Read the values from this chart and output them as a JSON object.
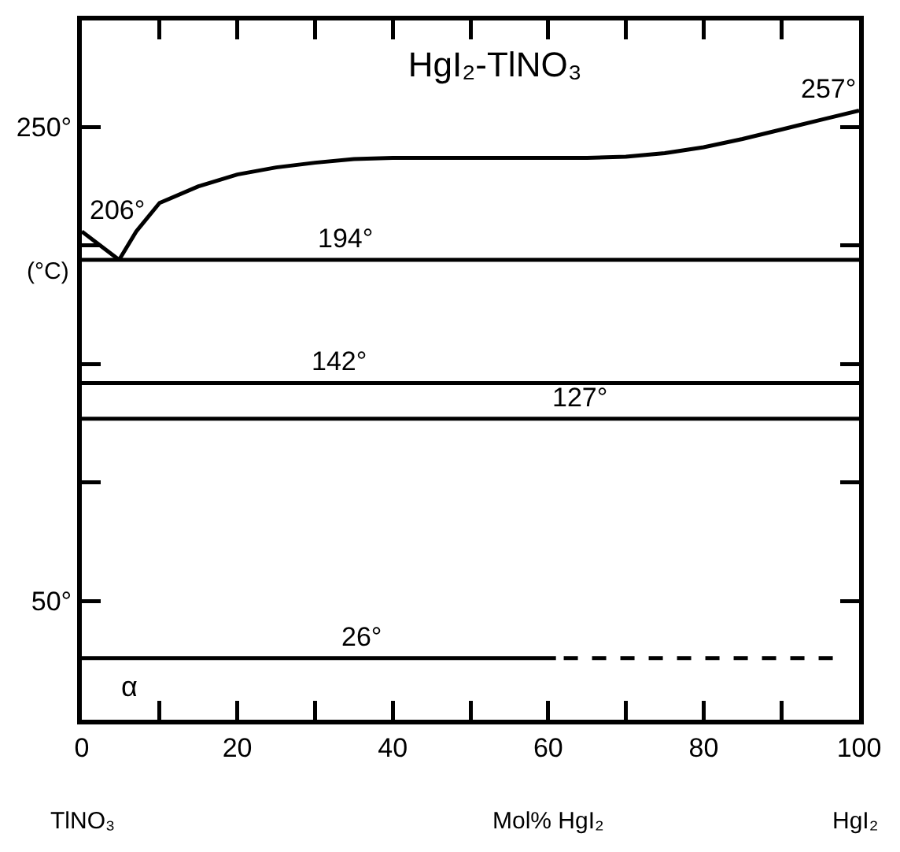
{
  "chart_data": {
    "type": "line",
    "title": "HgI₂-TlNO₃",
    "xlabel": "Mol% HgI₂",
    "ylabel": "(°C)",
    "xlim": [
      0,
      100
    ],
    "ylim": [
      0,
      295
    ],
    "xticks": [
      0,
      {
        "value": 10,
        "label": null
      },
      20,
      {
        "value": 30,
        "label": null
      },
      40,
      {
        "value": 50,
        "label": null
      },
      60,
      {
        "value": 70,
        "label": null
      },
      80,
      {
        "value": 90,
        "label": null
      },
      100
    ],
    "yticks": [
      {
        "value": 50,
        "label": "50°"
      },
      {
        "value": 100,
        "label": null
      },
      {
        "value": 150,
        "label": null
      },
      {
        "value": 200,
        "label": null
      },
      {
        "value": 250,
        "label": "250°"
      }
    ],
    "grid": false,
    "marker": "none",
    "line_style": "solid",
    "series": [
      {
        "color": "#000000",
        "x": [
          0,
          2,
          4.8
        ],
        "values": [
          206,
          201,
          194
        ]
      },
      {
        "color": "#000000",
        "x": [
          4.8,
          7,
          10,
          15,
          20,
          25,
          30,
          35,
          40,
          50,
          60,
          65,
          70,
          75,
          80,
          85,
          90,
          95,
          100
        ],
        "values": [
          194,
          206,
          218,
          225,
          230,
          233,
          235,
          236.5,
          237,
          237,
          237,
          237,
          237.5,
          239,
          241.5,
          245,
          249,
          253,
          257
        ]
      },
      {
        "color": "#000000",
        "x": [
          0,
          100
        ],
        "values": [
          194,
          194
        ]
      },
      {
        "color": "#000000",
        "x": [
          0,
          100
        ],
        "values": [
          142,
          142
        ]
      },
      {
        "color": "#000000",
        "x": [
          0,
          100
        ],
        "values": [
          127,
          127
        ]
      },
      {
        "color": "#000000",
        "x": [
          0,
          61
        ],
        "values": [
          26,
          26
        ]
      },
      {
        "color": "#000000",
        "x": [
          62,
          97
        ],
        "values": [
          26,
          26
        ],
        "line_style": "dashed"
      }
    ],
    "annotations": [
      {
        "text": "206°",
        "x": 0,
        "y": 206
      },
      {
        "text": "257°",
        "x": 100,
        "y": 257
      },
      {
        "text": "194°",
        "x": 34,
        "y": 194
      },
      {
        "text": "142°",
        "x": 33,
        "y": 142
      },
      {
        "text": "127°",
        "x": 64,
        "y": 127
      },
      {
        "text": "26°",
        "x": 36,
        "y": 26
      },
      "α",
      "TlNO₃",
      "HgI₂"
    ]
  }
}
